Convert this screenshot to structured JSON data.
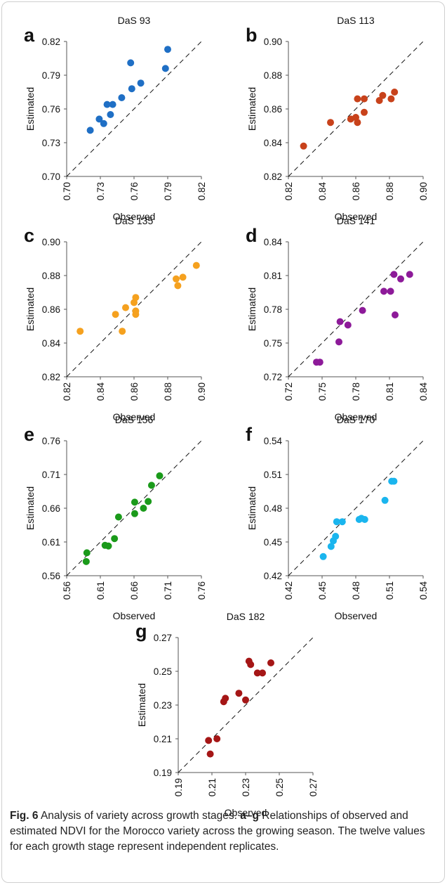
{
  "chart_data": [
    {
      "type": "scatter",
      "panel_letter": "a",
      "title": "DaS 93",
      "xlabel": "Observed",
      "ylabel": "Estimated",
      "xlim": [
        0.7,
        0.82
      ],
      "ylim": [
        0.7,
        0.82
      ],
      "xticks": [
        "0.70",
        "0.73",
        "0.76",
        "0.79",
        "0.82"
      ],
      "yticks": [
        "0.70",
        "0.73",
        "0.76",
        "0.79",
        "0.82"
      ],
      "color": "#1f6fc5",
      "reference_line": "y = x (dashed)",
      "points": [
        {
          "x": 0.721,
          "y": 0.741
        },
        {
          "x": 0.729,
          "y": 0.751
        },
        {
          "x": 0.733,
          "y": 0.747
        },
        {
          "x": 0.736,
          "y": 0.764
        },
        {
          "x": 0.739,
          "y": 0.755
        },
        {
          "x": 0.741,
          "y": 0.764
        },
        {
          "x": 0.749,
          "y": 0.77
        },
        {
          "x": 0.757,
          "y": 0.801
        },
        {
          "x": 0.758,
          "y": 0.778
        },
        {
          "x": 0.766,
          "y": 0.783
        },
        {
          "x": 0.788,
          "y": 0.796
        },
        {
          "x": 0.79,
          "y": 0.813
        }
      ]
    },
    {
      "type": "scatter",
      "panel_letter": "b",
      "title": "DaS 113",
      "xlabel": "Observed",
      "ylabel": "Estimated",
      "xlim": [
        0.82,
        0.9
      ],
      "ylim": [
        0.82,
        0.9
      ],
      "xticks": [
        "0.82",
        "0.84",
        "0.86",
        "0.88",
        "0.90"
      ],
      "yticks": [
        "0.82",
        "0.84",
        "0.86",
        "0.88",
        "0.90"
      ],
      "color": "#c8421b",
      "reference_line": "y = x (dashed)",
      "points": [
        {
          "x": 0.829,
          "y": 0.838
        },
        {
          "x": 0.845,
          "y": 0.852
        },
        {
          "x": 0.857,
          "y": 0.854
        },
        {
          "x": 0.86,
          "y": 0.855
        },
        {
          "x": 0.861,
          "y": 0.852
        },
        {
          "x": 0.861,
          "y": 0.866
        },
        {
          "x": 0.865,
          "y": 0.858
        },
        {
          "x": 0.865,
          "y": 0.866
        },
        {
          "x": 0.874,
          "y": 0.865
        },
        {
          "x": 0.876,
          "y": 0.868
        },
        {
          "x": 0.881,
          "y": 0.866
        },
        {
          "x": 0.883,
          "y": 0.87
        }
      ]
    },
    {
      "type": "scatter",
      "panel_letter": "c",
      "title": "DaS 135",
      "xlabel": "Observed",
      "ylabel": "Estimated",
      "xlim": [
        0.82,
        0.9
      ],
      "ylim": [
        0.82,
        0.9
      ],
      "xticks": [
        "0.82",
        "0.84",
        "0.86",
        "0.88",
        "0.90"
      ],
      "yticks": [
        "0.82",
        "0.84",
        "0.86",
        "0.88",
        "0.90"
      ],
      "color": "#f5a11f",
      "reference_line": "y = x (dashed)",
      "points": [
        {
          "x": 0.828,
          "y": 0.847
        },
        {
          "x": 0.849,
          "y": 0.857
        },
        {
          "x": 0.853,
          "y": 0.847
        },
        {
          "x": 0.855,
          "y": 0.861
        },
        {
          "x": 0.86,
          "y": 0.864
        },
        {
          "x": 0.861,
          "y": 0.867
        },
        {
          "x": 0.861,
          "y": 0.859
        },
        {
          "x": 0.861,
          "y": 0.857
        },
        {
          "x": 0.885,
          "y": 0.878
        },
        {
          "x": 0.886,
          "y": 0.874
        },
        {
          "x": 0.889,
          "y": 0.879
        },
        {
          "x": 0.897,
          "y": 0.886
        }
      ]
    },
    {
      "type": "scatter",
      "panel_letter": "d",
      "title": "DaS 141",
      "xlabel": "Observed",
      "ylabel": "Estimated",
      "xlim": [
        0.72,
        0.84
      ],
      "ylim": [
        0.72,
        0.84
      ],
      "xticks": [
        "0.72",
        "0.75",
        "0.78",
        "0.81",
        "0.84"
      ],
      "yticks": [
        "0.72",
        "0.75",
        "0.78",
        "0.81",
        "0.84"
      ],
      "color": "#8d1a99",
      "reference_line": "y = x (dashed)",
      "points": [
        {
          "x": 0.745,
          "y": 0.733
        },
        {
          "x": 0.748,
          "y": 0.733
        },
        {
          "x": 0.765,
          "y": 0.751
        },
        {
          "x": 0.766,
          "y": 0.769
        },
        {
          "x": 0.773,
          "y": 0.766
        },
        {
          "x": 0.786,
          "y": 0.779
        },
        {
          "x": 0.805,
          "y": 0.796
        },
        {
          "x": 0.811,
          "y": 0.796
        },
        {
          "x": 0.814,
          "y": 0.811
        },
        {
          "x": 0.815,
          "y": 0.775
        },
        {
          "x": 0.82,
          "y": 0.807
        },
        {
          "x": 0.828,
          "y": 0.811
        }
      ]
    },
    {
      "type": "scatter",
      "panel_letter": "e",
      "title": "DaS 156",
      "xlabel": "Observed",
      "ylabel": "Estimated",
      "xlim": [
        0.56,
        0.76
      ],
      "ylim": [
        0.56,
        0.76
      ],
      "xticks": [
        "0.56",
        "0.61",
        "0.66",
        "0.71",
        "0.76"
      ],
      "yticks": [
        "0.56",
        "0.61",
        "0.66",
        "0.71",
        "0.76"
      ],
      "color": "#1a9a1a",
      "reference_line": "y = x (dashed)",
      "points": [
        {
          "x": 0.589,
          "y": 0.581
        },
        {
          "x": 0.59,
          "y": 0.594
        },
        {
          "x": 0.617,
          "y": 0.605
        },
        {
          "x": 0.622,
          "y": 0.604
        },
        {
          "x": 0.631,
          "y": 0.615
        },
        {
          "x": 0.637,
          "y": 0.647
        },
        {
          "x": 0.661,
          "y": 0.669
        },
        {
          "x": 0.661,
          "y": 0.652
        },
        {
          "x": 0.674,
          "y": 0.66
        },
        {
          "x": 0.681,
          "y": 0.67
        },
        {
          "x": 0.686,
          "y": 0.694
        },
        {
          "x": 0.698,
          "y": 0.708
        }
      ]
    },
    {
      "type": "scatter",
      "panel_letter": "f",
      "title": "DaS 170",
      "xlabel": "Observed",
      "ylabel": "Estimated",
      "xlim": [
        0.42,
        0.54
      ],
      "ylim": [
        0.42,
        0.54
      ],
      "xticks": [
        "0.42",
        "0.45",
        "0.48",
        "0.51",
        "0.54"
      ],
      "yticks": [
        "0.42",
        "0.45",
        "0.48",
        "0.51",
        "0.54"
      ],
      "color": "#1ab5ee",
      "reference_line": "y = x (dashed)",
      "points": [
        {
          "x": 0.451,
          "y": 0.437
        },
        {
          "x": 0.458,
          "y": 0.446
        },
        {
          "x": 0.46,
          "y": 0.451
        },
        {
          "x": 0.462,
          "y": 0.455
        },
        {
          "x": 0.463,
          "y": 0.468
        },
        {
          "x": 0.468,
          "y": 0.468
        },
        {
          "x": 0.483,
          "y": 0.47
        },
        {
          "x": 0.485,
          "y": 0.471
        },
        {
          "x": 0.488,
          "y": 0.47
        },
        {
          "x": 0.506,
          "y": 0.487
        },
        {
          "x": 0.512,
          "y": 0.504
        },
        {
          "x": 0.514,
          "y": 0.504
        }
      ]
    },
    {
      "type": "scatter",
      "panel_letter": "g",
      "title": "DaS 182",
      "xlabel": "Observed",
      "ylabel": "Estimated",
      "xlim": [
        0.19,
        0.27
      ],
      "ylim": [
        0.19,
        0.27
      ],
      "xticks": [
        "0.19",
        "0.21",
        "0.23",
        "0.25",
        "0.27"
      ],
      "yticks": [
        "0.19",
        "0.21",
        "0.23",
        "0.25",
        "0.27"
      ],
      "color": "#a51616",
      "reference_line": "y = x (dashed)",
      "points": [
        {
          "x": 0.208,
          "y": 0.209
        },
        {
          "x": 0.209,
          "y": 0.201
        },
        {
          "x": 0.213,
          "y": 0.21
        },
        {
          "x": 0.217,
          "y": 0.232
        },
        {
          "x": 0.218,
          "y": 0.234
        },
        {
          "x": 0.226,
          "y": 0.237
        },
        {
          "x": 0.23,
          "y": 0.233
        },
        {
          "x": 0.232,
          "y": 0.256
        },
        {
          "x": 0.233,
          "y": 0.254
        },
        {
          "x": 0.237,
          "y": 0.249
        },
        {
          "x": 0.24,
          "y": 0.249
        },
        {
          "x": 0.245,
          "y": 0.255
        }
      ]
    }
  ],
  "caption": {
    "fig_label": "Fig. 6",
    "title_text": "Analysis of variety across growth stages.",
    "range_label": "a–g",
    "body_text": "Relationships of observed and estimated NDVI for the Morocco variety across the growing season. The twelve values for each growth stage represent independent replicates."
  }
}
